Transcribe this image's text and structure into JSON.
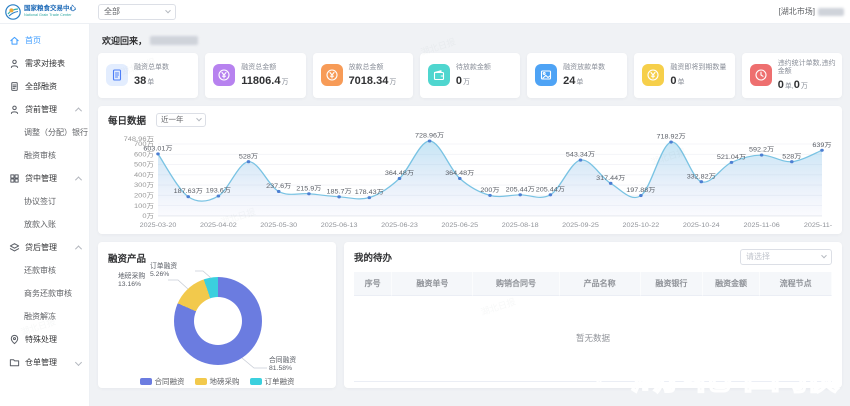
{
  "header": {
    "logo_title": "国家粮食交易中心",
    "logo_subtitle": "National Grain Trade Center",
    "filter_value": "全部",
    "market_label": "[湖北市场]"
  },
  "sidebar": {
    "items": [
      {
        "label": "首页",
        "icon": "home-icon",
        "type": "item",
        "active": true
      },
      {
        "label": "需求对接表",
        "icon": "user-list-icon",
        "type": "item"
      },
      {
        "label": "全部融资",
        "icon": "document-icon",
        "type": "item"
      },
      {
        "label": "贷前管理",
        "icon": "user-manage-icon",
        "type": "group",
        "expanded": true
      },
      {
        "label": "调整（分配）银行",
        "type": "subitem"
      },
      {
        "label": "融资审核",
        "type": "subitem"
      },
      {
        "label": "贷中管理",
        "icon": "grid-icon",
        "type": "group",
        "expanded": true
      },
      {
        "label": "协议签订",
        "type": "subitem"
      },
      {
        "label": "放款入账",
        "type": "subitem"
      },
      {
        "label": "贷后管理",
        "icon": "layers-icon",
        "type": "group",
        "expanded": true
      },
      {
        "label": "还款审核",
        "type": "subitem"
      },
      {
        "label": "商务还款审核",
        "type": "subitem"
      },
      {
        "label": "融资解冻",
        "type": "subitem"
      },
      {
        "label": "特殊处理",
        "icon": "pin-icon",
        "type": "item"
      },
      {
        "label": "仓单管理",
        "icon": "folder-icon",
        "type": "group",
        "expanded": false
      }
    ]
  },
  "main": {
    "welcome": "欢迎回来，",
    "stats": [
      {
        "label": "融资总单数",
        "value": "38",
        "unit": "单",
        "icon": "document-icon",
        "icon_bg": "#e3edfe",
        "icon_color": "#4d7ef7"
      },
      {
        "label": "融资总金额",
        "value": "11806.4",
        "unit": "万",
        "icon": "yen-circle-icon",
        "icon_bg": "#b782ef",
        "icon_color": "#ffffff"
      },
      {
        "label": "放款总金额",
        "value": "7018.34",
        "unit": "万",
        "icon": "coin-icon",
        "icon_bg": "#f79b57",
        "icon_color": "#ffffff"
      },
      {
        "label": "待放款金额",
        "value": "0",
        "unit": "万",
        "icon": "wallet-icon",
        "icon_bg": "#4fd6cf",
        "icon_color": "#ffffff"
      },
      {
        "label": "融资放款单数",
        "value": "24",
        "unit": "单",
        "icon": "image-icon",
        "icon_bg": "#4ea3f5",
        "icon_color": "#ffffff"
      },
      {
        "label": "融资即将到期数量",
        "value": "0",
        "unit": "单",
        "icon": "coin-icon",
        "icon_bg": "#f6cf4a",
        "icon_color": "#ffffff"
      },
      {
        "label": "违约统计单数,违约金额",
        "value": "0",
        "unit": "单,",
        "value2": "0",
        "unit2": "万",
        "icon": "clock-icon",
        "icon_bg": "#ee6f6f",
        "icon_color": "#ffffff"
      }
    ]
  },
  "chart_data": [
    {
      "type": "line",
      "title": "每日数据",
      "range_select": "近一年",
      "x_dates": [
        "2025-03-20",
        "2025-04-02",
        "2025-05-30",
        "2025-06-13",
        "2025-06-23",
        "2025-06-25",
        "2025-08-18",
        "2025-09-25",
        "2025-10-22",
        "2025-10-24",
        "2025-11-06",
        "2025-11-18"
      ],
      "values": [
        603.01,
        187.63,
        193.6,
        528,
        237.6,
        215.9,
        185.7,
        178.43,
        364.48,
        728.96,
        364.48,
        200,
        205.44,
        205.44,
        543.34,
        317.44,
        197.88,
        718.92,
        332.82,
        521.04,
        592.2,
        528,
        639
      ],
      "point_labels": [
        "603.01万",
        "187.63万",
        "193.6万",
        "528万",
        "237.6万",
        "215.9万",
        "185.7万",
        "178.43万",
        "364.48万",
        "728.96万",
        "364.48万",
        "200万",
        "205.44万",
        "205.44万",
        "543.34万",
        "317.44万",
        "197.88万",
        "718.92万",
        "332.82万",
        "521.04万",
        "592.2万",
        "528万",
        "639万"
      ],
      "y_tick_values": [
        0,
        100,
        200,
        300,
        400,
        500,
        600,
        700
      ],
      "y_tick_labels": [
        "0万",
        "100万",
        "200万",
        "300万",
        "400万",
        "500万",
        "600万",
        "700万"
      ],
      "y_max": 748.96,
      "y_max_label": "748.96万",
      "colors": {
        "line": "#79c3e3",
        "dot": "#4d7fd2",
        "area_top": "rgba(128,200,233,0.45)",
        "area_bottom": "rgba(165,178,233,0.05)"
      },
      "ylim": [
        0,
        748.96
      ],
      "grid": true,
      "legend_position": "none"
    },
    {
      "type": "pie",
      "title": "融资产品",
      "slices": [
        {
          "name": "合同融资",
          "pct": 81.58,
          "pct_label": "81.58%",
          "color": "#6b7ce0"
        },
        {
          "name": "地磅采购",
          "pct": 13.16,
          "pct_label": "13.16%",
          "color": "#f2c94c"
        },
        {
          "name": "订单融资",
          "pct": 5.26,
          "pct_label": "5.26%",
          "color": "#3bd0de"
        }
      ],
      "legend": [
        "合同融资",
        "地磅采购",
        "订单融资"
      ],
      "legend_position": "bottom"
    }
  ],
  "todo": {
    "title": "我的待办",
    "select_placeholder": "请选择",
    "columns": [
      "序号",
      "融资单号",
      "购销合同号",
      "产品名称",
      "融资银行",
      "融资金额",
      "流程节点"
    ],
    "empty_text": "暂无数据"
  },
  "watermark": "湖北日报"
}
